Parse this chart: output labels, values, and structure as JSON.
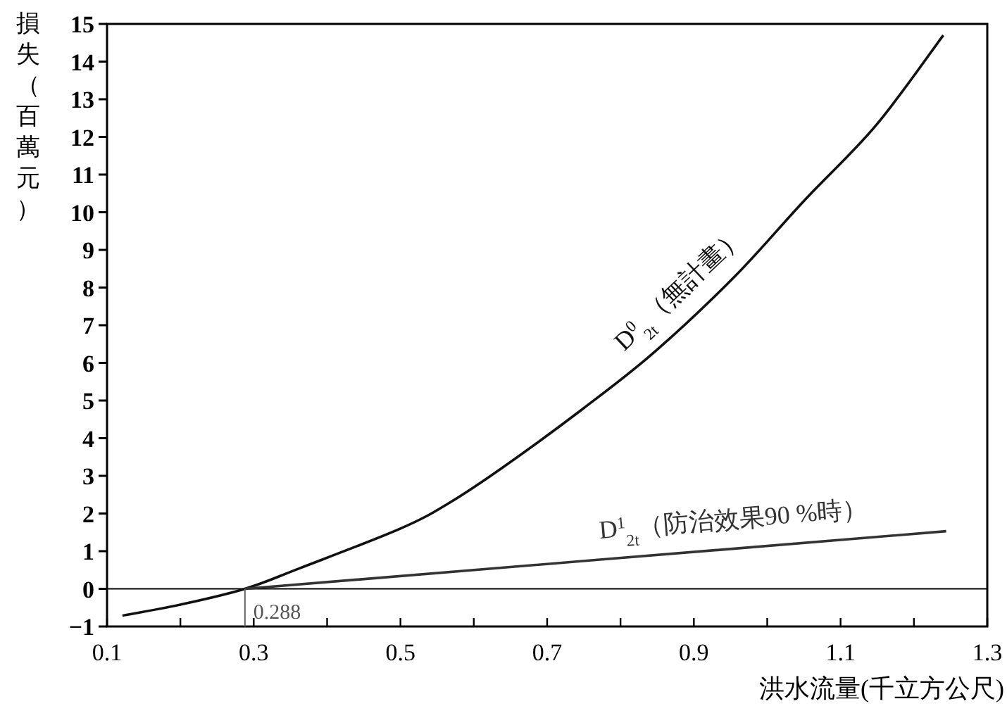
{
  "chart_data": {
    "type": "line",
    "xlabel": "洪水流量(千立方公尺)",
    "ylabel": "損失（百萬元）",
    "xlim": [
      0.1,
      1.3
    ],
    "ylim": [
      -1,
      15
    ],
    "xticks": [
      {
        "value": 0.1,
        "label": "0.1"
      },
      {
        "value": 0.2,
        "label": null
      },
      {
        "value": 0.3,
        "label": "0.3"
      },
      {
        "value": 0.4,
        "label": null
      },
      {
        "value": 0.5,
        "label": "0.5"
      },
      {
        "value": 0.6,
        "label": null
      },
      {
        "value": 0.7,
        "label": "0.7"
      },
      {
        "value": 0.8,
        "label": null
      },
      {
        "value": 0.9,
        "label": "0.9"
      },
      {
        "value": 1.0,
        "label": null
      },
      {
        "value": 1.1,
        "label": "1.1"
      },
      {
        "value": 1.2,
        "label": null
      },
      {
        "value": 1.3,
        "label": "1.3"
      }
    ],
    "yticks": [
      -1,
      0,
      1,
      2,
      3,
      4,
      5,
      6,
      7,
      8,
      9,
      10,
      11,
      12,
      13,
      14,
      15
    ],
    "series": [
      {
        "name": "D$^{0}$$_{2t}$（無計畫）",
        "color": "#111111",
        "x": [
          0.121,
          0.2,
          0.288,
          0.363,
          0.5,
          0.568,
          0.645,
          0.75,
          0.847,
          0.956,
          1.05,
          1.148,
          1.24
        ],
        "values": [
          -0.71,
          -0.42,
          0,
          0.55,
          1.6,
          2.3,
          3.3,
          4.8,
          6.3,
          8.3,
          10.3,
          12.3,
          14.7
        ]
      },
      {
        "name": "D$^{1}$$_{2t}$（防治效果90 %時）",
        "color": "#333333",
        "x": [
          0.288,
          1.244
        ],
        "values": [
          0,
          1.53
        ]
      }
    ],
    "ref_lines": [
      {
        "axis": "y",
        "value": 0
      }
    ],
    "annotations": [
      {
        "text": "0.288",
        "x": 0.288,
        "y": 0
      }
    ],
    "grid": false,
    "marker": "none",
    "line_style": "solid"
  }
}
